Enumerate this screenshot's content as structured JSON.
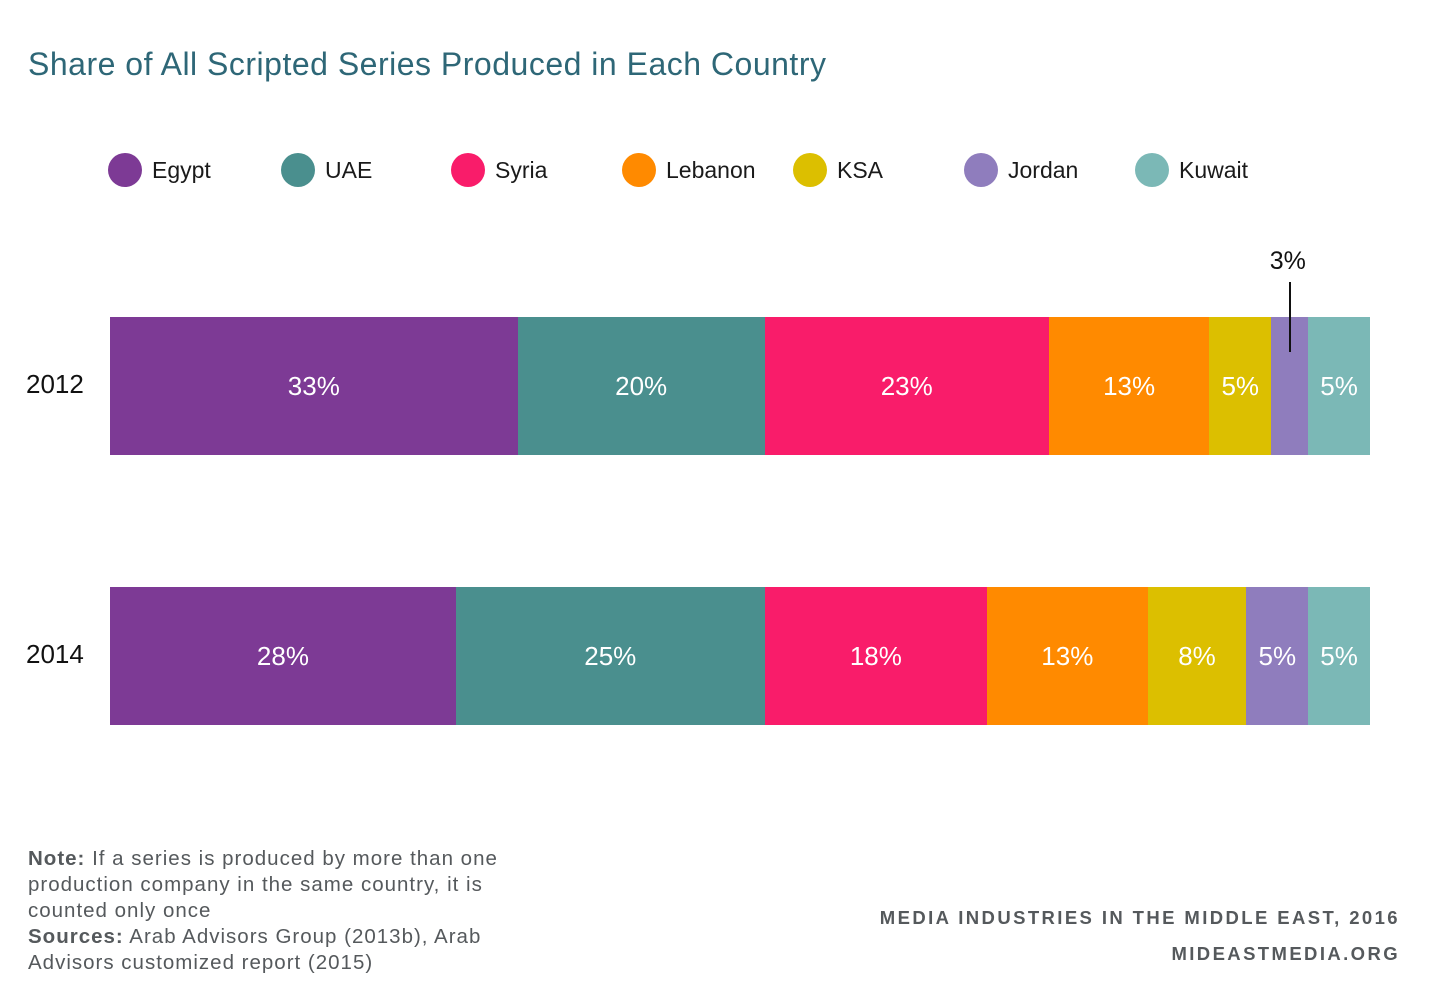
{
  "chart_data": {
    "type": "bar",
    "orientation": "horizontal",
    "stacked": true,
    "title": "Share of All Scripted Series Produced in Each Country",
    "categories": [
      "2012",
      "2014"
    ],
    "series": [
      {
        "name": "Egypt",
        "color": "#7d3a95",
        "values": [
          33,
          28
        ],
        "labels": [
          "33%",
          "28%"
        ]
      },
      {
        "name": "UAE",
        "color": "#4a8f8e",
        "values": [
          20,
          25
        ],
        "labels": [
          "20%",
          "25%"
        ]
      },
      {
        "name": "Syria",
        "color": "#f91c6a",
        "values": [
          23,
          18
        ],
        "labels": [
          "23%",
          "18%"
        ]
      },
      {
        "name": "Lebanon",
        "color": "#ff8a00",
        "values": [
          13,
          13
        ],
        "labels": [
          "13%",
          "13%"
        ]
      },
      {
        "name": "KSA",
        "color": "#dcbf00",
        "values": [
          5,
          8
        ],
        "labels": [
          "5%",
          "8%"
        ]
      },
      {
        "name": "Jordan",
        "color": "#8f7dbd",
        "values": [
          3,
          5
        ],
        "labels": [
          "",
          "5%"
        ]
      },
      {
        "name": "Kuwait",
        "color": "#7bb8b6",
        "values": [
          5,
          5
        ],
        "labels": [
          "5%",
          "5%"
        ]
      }
    ],
    "callout": {
      "text": "3%",
      "series": "Jordan",
      "category": "2012"
    },
    "legend_position": "top",
    "grid": false,
    "xlim": [
      0,
      102
    ]
  },
  "note": {
    "note_label": "Note:",
    "note_text": " If a series is produced by more than one production company in the same country, it is counted only once",
    "sources_label": "Sources:",
    "sources_text": " Arab Advisors Group (2013b), Arab Advisors customized report (2015)"
  },
  "footer": {
    "line1": "MEDIA INDUSTRIES IN THE MIDDLE EAST, 2016",
    "line2": "MIDEASTMEDIA.ORG"
  }
}
